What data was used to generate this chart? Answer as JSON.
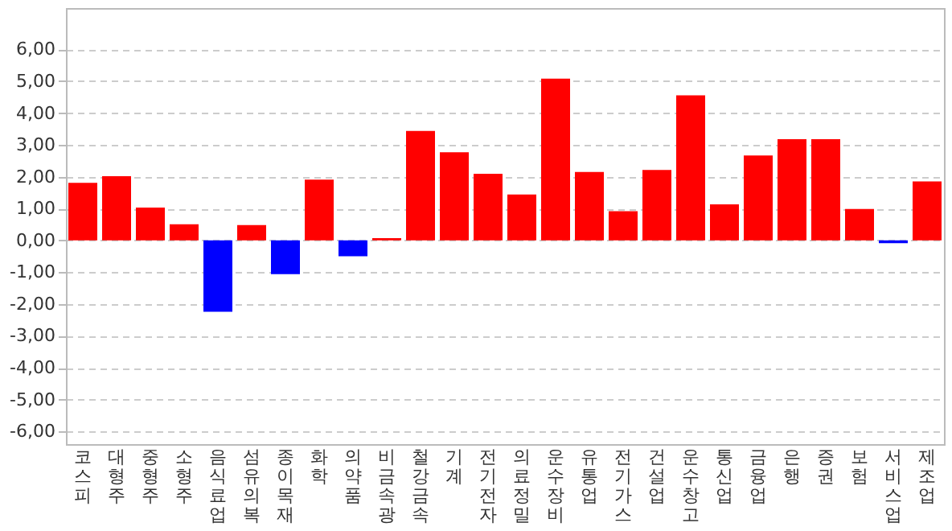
{
  "chart_data": {
    "type": "bar",
    "categories": [
      "코스피",
      "대형주",
      "중형주",
      "소형주",
      "음식료업",
      "섬유의복",
      "종이목재",
      "화학",
      "의약품",
      "비금속광",
      "철강금속",
      "기계",
      "전기전자",
      "의료정밀",
      "운수장비",
      "유통업",
      "전기가스",
      "건설업",
      "운수창고",
      "통신업",
      "금융업",
      "은행",
      "증권",
      "보험",
      "서비스업",
      "제조업"
    ],
    "values": [
      1.81,
      2.02,
      1.03,
      0.51,
      -2.24,
      0.48,
      -1.06,
      1.91,
      -0.5,
      0.07,
      3.44,
      2.77,
      2.09,
      1.44,
      5.08,
      2.15,
      0.92,
      2.21,
      4.56,
      1.13,
      2.67,
      3.18,
      3.18,
      0.99,
      -0.09,
      1.85
    ],
    "colors": [
      "#ff0000",
      "#ff0000",
      "#ff0000",
      "#ff0000",
      "#0000ff",
      "#ff0000",
      "#0000ff",
      "#ff0000",
      "#0000ff",
      "#ff0000",
      "#ff0000",
      "#ff0000",
      "#ff0000",
      "#ff0000",
      "#ff0000",
      "#ff0000",
      "#ff0000",
      "#ff0000",
      "#ff0000",
      "#ff0000",
      "#ff0000",
      "#ff0000",
      "#ff0000",
      "#ff0000",
      "#0000ff",
      "#ff0000"
    ],
    "ylim": [
      -6.4,
      7.3
    ],
    "yticks": [
      {
        "value": -6,
        "label": "-6,00"
      },
      {
        "value": -5,
        "label": "-5,00"
      },
      {
        "value": -4,
        "label": "-4,00"
      },
      {
        "value": -3,
        "label": "-3,00"
      },
      {
        "value": -2,
        "label": "-2,00"
      },
      {
        "value": -1,
        "label": "-1,00"
      },
      {
        "value": 0,
        "label": "0,00"
      },
      {
        "value": 1,
        "label": "1,00"
      },
      {
        "value": 2,
        "label": "2,00"
      },
      {
        "value": 3,
        "label": "3,00"
      },
      {
        "value": 4,
        "label": "4,00"
      },
      {
        "value": 5,
        "label": "5,00"
      },
      {
        "value": 6,
        "label": "6,00"
      }
    ],
    "grid": "y"
  }
}
